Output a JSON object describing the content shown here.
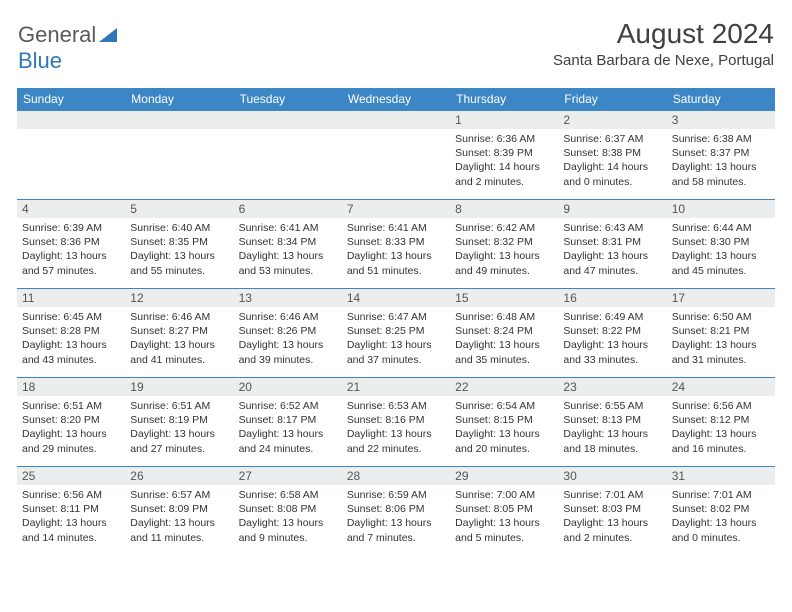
{
  "logo": {
    "general": "General",
    "blue": "Blue"
  },
  "header": {
    "month_title": "August 2024",
    "location": "Santa Barbara de Nexe, Portugal"
  },
  "colors": {
    "accent": "#3d86c6",
    "header_text": "#ffffff",
    "daynum_bg": "#eceded",
    "text": "#333333",
    "logo_gray": "#5a5a5a",
    "logo_blue": "#2e77b8"
  },
  "typography": {
    "month_title_fontsize": 28,
    "location_fontsize": 15,
    "dow_fontsize": 12,
    "daynum_fontsize": 12,
    "body_fontsize": 10.5
  },
  "calendar": {
    "type": "table",
    "days_of_week": [
      "Sunday",
      "Monday",
      "Tuesday",
      "Wednesday",
      "Thursday",
      "Friday",
      "Saturday"
    ],
    "weeks": [
      [
        {
          "num": "",
          "lines": []
        },
        {
          "num": "",
          "lines": []
        },
        {
          "num": "",
          "lines": []
        },
        {
          "num": "",
          "lines": []
        },
        {
          "num": "1",
          "lines": [
            "Sunrise: 6:36 AM",
            "Sunset: 8:39 PM",
            "Daylight: 14 hours and 2 minutes."
          ]
        },
        {
          "num": "2",
          "lines": [
            "Sunrise: 6:37 AM",
            "Sunset: 8:38 PM",
            "Daylight: 14 hours and 0 minutes."
          ]
        },
        {
          "num": "3",
          "lines": [
            "Sunrise: 6:38 AM",
            "Sunset: 8:37 PM",
            "Daylight: 13 hours and 58 minutes."
          ]
        }
      ],
      [
        {
          "num": "4",
          "lines": [
            "Sunrise: 6:39 AM",
            "Sunset: 8:36 PM",
            "Daylight: 13 hours and 57 minutes."
          ]
        },
        {
          "num": "5",
          "lines": [
            "Sunrise: 6:40 AM",
            "Sunset: 8:35 PM",
            "Daylight: 13 hours and 55 minutes."
          ]
        },
        {
          "num": "6",
          "lines": [
            "Sunrise: 6:41 AM",
            "Sunset: 8:34 PM",
            "Daylight: 13 hours and 53 minutes."
          ]
        },
        {
          "num": "7",
          "lines": [
            "Sunrise: 6:41 AM",
            "Sunset: 8:33 PM",
            "Daylight: 13 hours and 51 minutes."
          ]
        },
        {
          "num": "8",
          "lines": [
            "Sunrise: 6:42 AM",
            "Sunset: 8:32 PM",
            "Daylight: 13 hours and 49 minutes."
          ]
        },
        {
          "num": "9",
          "lines": [
            "Sunrise: 6:43 AM",
            "Sunset: 8:31 PM",
            "Daylight: 13 hours and 47 minutes."
          ]
        },
        {
          "num": "10",
          "lines": [
            "Sunrise: 6:44 AM",
            "Sunset: 8:30 PM",
            "Daylight: 13 hours and 45 minutes."
          ]
        }
      ],
      [
        {
          "num": "11",
          "lines": [
            "Sunrise: 6:45 AM",
            "Sunset: 8:28 PM",
            "Daylight: 13 hours and 43 minutes."
          ]
        },
        {
          "num": "12",
          "lines": [
            "Sunrise: 6:46 AM",
            "Sunset: 8:27 PM",
            "Daylight: 13 hours and 41 minutes."
          ]
        },
        {
          "num": "13",
          "lines": [
            "Sunrise: 6:46 AM",
            "Sunset: 8:26 PM",
            "Daylight: 13 hours and 39 minutes."
          ]
        },
        {
          "num": "14",
          "lines": [
            "Sunrise: 6:47 AM",
            "Sunset: 8:25 PM",
            "Daylight: 13 hours and 37 minutes."
          ]
        },
        {
          "num": "15",
          "lines": [
            "Sunrise: 6:48 AM",
            "Sunset: 8:24 PM",
            "Daylight: 13 hours and 35 minutes."
          ]
        },
        {
          "num": "16",
          "lines": [
            "Sunrise: 6:49 AM",
            "Sunset: 8:22 PM",
            "Daylight: 13 hours and 33 minutes."
          ]
        },
        {
          "num": "17",
          "lines": [
            "Sunrise: 6:50 AM",
            "Sunset: 8:21 PM",
            "Daylight: 13 hours and 31 minutes."
          ]
        }
      ],
      [
        {
          "num": "18",
          "lines": [
            "Sunrise: 6:51 AM",
            "Sunset: 8:20 PM",
            "Daylight: 13 hours and 29 minutes."
          ]
        },
        {
          "num": "19",
          "lines": [
            "Sunrise: 6:51 AM",
            "Sunset: 8:19 PM",
            "Daylight: 13 hours and 27 minutes."
          ]
        },
        {
          "num": "20",
          "lines": [
            "Sunrise: 6:52 AM",
            "Sunset: 8:17 PM",
            "Daylight: 13 hours and 24 minutes."
          ]
        },
        {
          "num": "21",
          "lines": [
            "Sunrise: 6:53 AM",
            "Sunset: 8:16 PM",
            "Daylight: 13 hours and 22 minutes."
          ]
        },
        {
          "num": "22",
          "lines": [
            "Sunrise: 6:54 AM",
            "Sunset: 8:15 PM",
            "Daylight: 13 hours and 20 minutes."
          ]
        },
        {
          "num": "23",
          "lines": [
            "Sunrise: 6:55 AM",
            "Sunset: 8:13 PM",
            "Daylight: 13 hours and 18 minutes."
          ]
        },
        {
          "num": "24",
          "lines": [
            "Sunrise: 6:56 AM",
            "Sunset: 8:12 PM",
            "Daylight: 13 hours and 16 minutes."
          ]
        }
      ],
      [
        {
          "num": "25",
          "lines": [
            "Sunrise: 6:56 AM",
            "Sunset: 8:11 PM",
            "Daylight: 13 hours and 14 minutes."
          ]
        },
        {
          "num": "26",
          "lines": [
            "Sunrise: 6:57 AM",
            "Sunset: 8:09 PM",
            "Daylight: 13 hours and 11 minutes."
          ]
        },
        {
          "num": "27",
          "lines": [
            "Sunrise: 6:58 AM",
            "Sunset: 8:08 PM",
            "Daylight: 13 hours and 9 minutes."
          ]
        },
        {
          "num": "28",
          "lines": [
            "Sunrise: 6:59 AM",
            "Sunset: 8:06 PM",
            "Daylight: 13 hours and 7 minutes."
          ]
        },
        {
          "num": "29",
          "lines": [
            "Sunrise: 7:00 AM",
            "Sunset: 8:05 PM",
            "Daylight: 13 hours and 5 minutes."
          ]
        },
        {
          "num": "30",
          "lines": [
            "Sunrise: 7:01 AM",
            "Sunset: 8:03 PM",
            "Daylight: 13 hours and 2 minutes."
          ]
        },
        {
          "num": "31",
          "lines": [
            "Sunrise: 7:01 AM",
            "Sunset: 8:02 PM",
            "Daylight: 13 hours and 0 minutes."
          ]
        }
      ]
    ]
  }
}
